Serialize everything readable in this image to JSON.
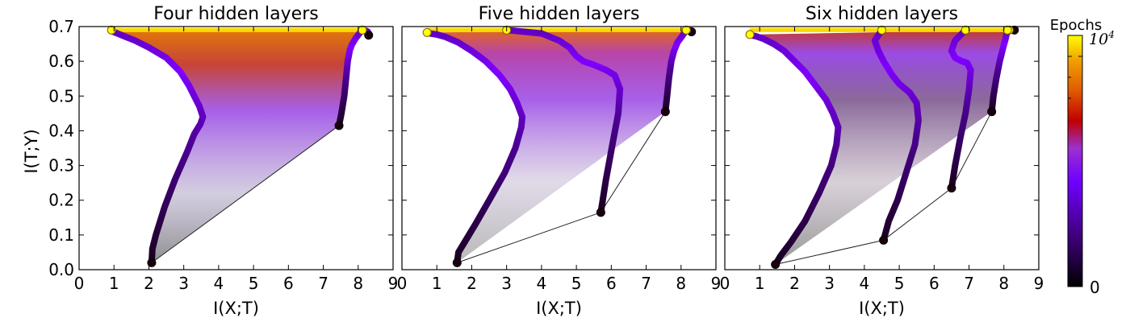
{
  "chart_data": [
    {
      "type": "line",
      "title": "Four hidden layers",
      "xlabel": "I(X;T)",
      "ylabel": "I(T;Y)",
      "xlim": [
        0,
        9
      ],
      "ylim": [
        0.0,
        0.7
      ],
      "x_ticks": [
        "0",
        "1",
        "2",
        "3",
        "4",
        "5",
        "6",
        "7",
        "8",
        "9"
      ],
      "y_ticks": [
        "0.0",
        "0.1",
        "0.2",
        "0.3",
        "0.4",
        "0.5",
        "0.6",
        "0.7"
      ],
      "series": [
        {
          "x": [
            8.3,
            8.3,
            8.28,
            8.22,
            8.15,
            8.12
          ],
          "y": [
            0.675,
            0.68,
            0.685,
            0.688,
            0.69,
            0.69
          ]
        },
        {
          "x": [
            7.45,
            7.52,
            7.6,
            7.65,
            7.7,
            7.76,
            7.82,
            7.92,
            8.05,
            8.12
          ],
          "y": [
            0.415,
            0.45,
            0.5,
            0.55,
            0.6,
            0.632,
            0.648,
            0.665,
            0.682,
            0.69
          ]
        },
        {
          "x": [
            2.08,
            2.1,
            2.2,
            2.45,
            2.75,
            3.1,
            3.3,
            3.48,
            3.55,
            3.45,
            3.3,
            3.15,
            2.9,
            2.5,
            2.0,
            1.6,
            1.3,
            1.1,
            0.95,
            0.93
          ],
          "y": [
            0.02,
            0.06,
            0.1,
            0.18,
            0.26,
            0.34,
            0.39,
            0.42,
            0.44,
            0.47,
            0.5,
            0.53,
            0.57,
            0.61,
            0.64,
            0.66,
            0.672,
            0.68,
            0.686,
            0.69
          ]
        }
      ]
    },
    {
      "type": "line",
      "title": "Five hidden layers",
      "xlabel": "I(X;T)",
      "xlim": [
        0,
        9
      ],
      "ylim": [
        0.0,
        0.7
      ],
      "x_ticks": [
        "0",
        "1",
        "2",
        "3",
        "4",
        "5",
        "6",
        "7",
        "8",
        "9"
      ],
      "series": [
        {
          "x": [
            8.3,
            8.28,
            8.22,
            8.15
          ],
          "y": [
            0.685,
            0.688,
            0.69,
            0.69
          ]
        },
        {
          "x": [
            7.55,
            7.6,
            7.65,
            7.72,
            7.8,
            7.9,
            8.05,
            8.15
          ],
          "y": [
            0.455,
            0.5,
            0.55,
            0.6,
            0.63,
            0.655,
            0.675,
            0.69
          ]
        },
        {
          "x": [
            5.7,
            5.85,
            6.05,
            6.2,
            6.25,
            6.1,
            5.85,
            5.5,
            5.2,
            5.0,
            4.8,
            4.5,
            4.0,
            3.0
          ],
          "y": [
            0.165,
            0.26,
            0.37,
            0.45,
            0.52,
            0.56,
            0.575,
            0.59,
            0.6,
            0.615,
            0.64,
            0.66,
            0.68,
            0.69
          ]
        },
        {
          "x": [
            1.58,
            1.62,
            1.8,
            2.1,
            2.5,
            2.95,
            3.25,
            3.42,
            3.45,
            3.3,
            3.1,
            2.8,
            2.4,
            2.0,
            1.6,
            1.25,
            1.0,
            0.8,
            0.72
          ],
          "y": [
            0.02,
            0.05,
            0.08,
            0.13,
            0.2,
            0.28,
            0.35,
            0.41,
            0.44,
            0.48,
            0.52,
            0.56,
            0.6,
            0.63,
            0.655,
            0.67,
            0.677,
            0.68,
            0.683
          ]
        }
      ]
    },
    {
      "type": "line",
      "title": "Six hidden layers",
      "xlabel": "I(X;T)",
      "xlim": [
        0,
        9
      ],
      "ylim": [
        0.0,
        0.7
      ],
      "x_ticks": [
        "0",
        "1",
        "2",
        "3",
        "4",
        "5",
        "6",
        "7",
        "8",
        "9"
      ],
      "series": [
        {
          "x": [
            8.3,
            8.28,
            8.22,
            8.15
          ],
          "y": [
            0.69,
            0.69,
            0.69,
            0.69
          ]
        },
        {
          "x": [
            7.65,
            7.7,
            7.78,
            7.88,
            7.98,
            8.05,
            8.1
          ],
          "y": [
            0.455,
            0.5,
            0.55,
            0.6,
            0.64,
            0.665,
            0.69
          ]
        },
        {
          "x": [
            6.5,
            6.6,
            6.75,
            6.9,
            7.0,
            7.05,
            6.95,
            6.8,
            6.6,
            6.5,
            6.6,
            6.9
          ],
          "y": [
            0.235,
            0.3,
            0.38,
            0.45,
            0.52,
            0.575,
            0.595,
            0.6,
            0.61,
            0.63,
            0.66,
            0.69
          ]
        },
        {
          "x": [
            4.55,
            4.7,
            4.95,
            5.2,
            5.45,
            5.55,
            5.5,
            5.3,
            5.0,
            4.8,
            4.55,
            4.4,
            4.3,
            4.5
          ],
          "y": [
            0.085,
            0.14,
            0.2,
            0.28,
            0.36,
            0.43,
            0.48,
            0.51,
            0.535,
            0.56,
            0.6,
            0.63,
            0.66,
            0.69
          ]
        },
        {
          "x": [
            1.45,
            1.6,
            1.9,
            2.3,
            2.7,
            3.05,
            3.2,
            3.25,
            3.1,
            2.9,
            2.6,
            2.3,
            2.0,
            1.7,
            1.4,
            1.1,
            0.9,
            0.75,
            0.72
          ],
          "y": [
            0.015,
            0.04,
            0.08,
            0.14,
            0.22,
            0.3,
            0.36,
            0.41,
            0.45,
            0.49,
            0.53,
            0.57,
            0.6,
            0.63,
            0.65,
            0.665,
            0.672,
            0.675,
            0.677
          ]
        }
      ]
    }
  ],
  "colorbar": {
    "label": "Epochs",
    "tick_top_base": "10",
    "tick_top_exp": "4",
    "tick_bottom": "0",
    "colormap": [
      "#000000",
      "#3a0070",
      "#7000ff",
      "#9b30d0",
      "#c00000",
      "#e05a00",
      "#f0a000",
      "#ffff00"
    ],
    "scale": "log"
  }
}
